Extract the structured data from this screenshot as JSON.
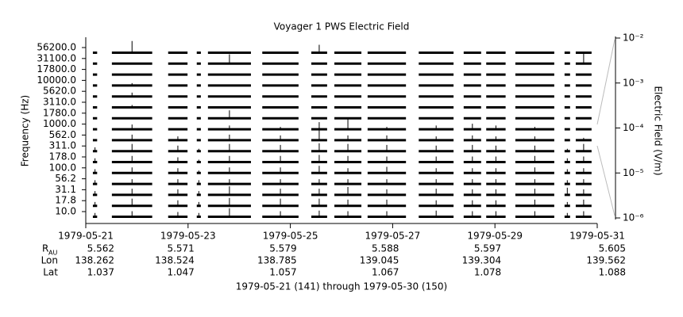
{
  "chart_data": {
    "type": "strip",
    "title": "Voyager 1 PWS Electric Field",
    "ylabel": "Frequency (Hz)",
    "y2label": "Electric Field (V/m)",
    "xlabel": "1979-05-21 (141) through 1979-05-30 (150)",
    "color": "#000000",
    "xlim": [
      "1979-05-21",
      "1979-05-31"
    ],
    "xticks": [
      "1979-05-21",
      "1979-05-23",
      "1979-05-25",
      "1979-05-27",
      "1979-05-29",
      "1979-05-31"
    ],
    "categories": [
      "56200.0",
      "31100.0",
      "17800.0",
      "10000.0",
      "5620.0",
      "3110.0",
      "1780.0",
      "1000.0",
      "562.0",
      "311.0",
      "178.0",
      "100.0",
      "56.2",
      "31.1",
      "17.8",
      "10.0"
    ],
    "segments": [
      [
        "1979-05-21 03:20",
        "1979-05-21 05:20"
      ],
      [
        "1979-05-21 12:15",
        "1979-05-22 07:10"
      ],
      [
        "1979-05-22 14:40",
        "1979-05-22 23:45"
      ],
      [
        "1979-05-23 04:05",
        "1979-05-23 06:00"
      ],
      [
        "1979-05-23 09:20",
        "1979-05-24 05:30"
      ],
      [
        "1979-05-24 10:50",
        "1979-05-25 03:50"
      ],
      [
        "1979-05-25 09:50",
        "1979-05-25 17:15"
      ],
      [
        "1979-05-25 20:40",
        "1979-05-26 09:20"
      ],
      [
        "1979-05-26 12:15",
        "1979-05-27 06:15"
      ],
      [
        "1979-05-27 12:15",
        "1979-05-28 04:35"
      ],
      [
        "1979-05-28 09:20",
        "1979-05-28 17:30"
      ],
      [
        "1979-05-28 19:55",
        "1979-05-29 05:00"
      ],
      [
        "1979-05-29 09:35",
        "1979-05-30 03:50"
      ],
      [
        "1979-05-30 08:40",
        "1979-05-30 11:15"
      ],
      [
        "1979-05-30 13:55",
        "1979-05-30 21:20"
      ]
    ],
    "values": [
      [
        1.2e-06,
        3e-05,
        1.2e-06,
        1.2e-06,
        1.2e-06,
        1.2e-06,
        1e-05,
        1.2e-06,
        1.2e-06,
        1.2e-06,
        1.2e-06,
        1.2e-06,
        1.2e-06,
        1.2e-06,
        1.2e-06
      ],
      [
        1.2e-06,
        1.2e-06,
        1.2e-06,
        1.2e-06,
        1.5e-05,
        1.2e-06,
        1.2e-06,
        1.2e-06,
        1.2e-06,
        1.2e-06,
        1.2e-06,
        1.2e-06,
        1.2e-06,
        1.2e-06,
        2e-05
      ],
      [
        1.2e-06,
        1.2e-06,
        1.2e-06,
        1.2e-06,
        1.2e-06,
        1.2e-06,
        1.2e-06,
        1.2e-06,
        1.2e-06,
        1.2e-06,
        1.2e-06,
        1.2e-06,
        1.2e-06,
        1.2e-06,
        1.2e-06
      ],
      [
        1.2e-06,
        2e-06,
        1.2e-06,
        1.2e-06,
        1.2e-06,
        1.2e-06,
        1.2e-06,
        1.2e-06,
        1.2e-06,
        1.2e-06,
        1.2e-06,
        1.2e-06,
        1.2e-06,
        1.2e-06,
        1.2e-06
      ],
      [
        1.2e-06,
        3e-06,
        1.2e-06,
        1.2e-06,
        1.2e-06,
        1.2e-06,
        1.2e-06,
        1.2e-06,
        1.2e-06,
        1.2e-06,
        1.2e-06,
        1.2e-06,
        1.2e-06,
        1.2e-06,
        1.2e-06
      ],
      [
        1.2e-06,
        2e-06,
        1.2e-06,
        1.2e-06,
        1.2e-06,
        1.2e-06,
        1.2e-06,
        1.2e-06,
        1.2e-06,
        1.2e-06,
        1.2e-06,
        1.2e-06,
        1.2e-06,
        1.2e-06,
        1.2e-06
      ],
      [
        1.2e-06,
        1.2e-06,
        1.2e-06,
        1.2e-06,
        1e-05,
        1.2e-06,
        1.2e-06,
        1.2e-06,
        1.2e-06,
        1.2e-06,
        1.2e-06,
        1.2e-06,
        1.2e-06,
        1.2e-06,
        1.2e-06
      ],
      [
        1.2e-06,
        4e-06,
        1.2e-06,
        1.2e-06,
        3e-06,
        2e-06,
        8e-06,
        3e-05,
        2e-06,
        3e-06,
        5e-06,
        3e-06,
        2e-06,
        1.2e-06,
        1.2e-06
      ],
      [
        1.2e-06,
        5e-06,
        3e-06,
        1.2e-06,
        5e-06,
        4e-06,
        4e-05,
        4e-06,
        4e-06,
        3e-06,
        4e-06,
        3e-06,
        3e-06,
        1.2e-06,
        2e-06
      ],
      [
        3e-06,
        8e-06,
        5e-06,
        2e-06,
        8e-06,
        6e-06,
        1e-05,
        8e-06,
        6e-06,
        5e-06,
        6e-06,
        5e-06,
        5e-06,
        2e-06,
        8e-06
      ],
      [
        3e-06,
        6e-06,
        4e-06,
        2e-06,
        6e-06,
        6e-06,
        8e-06,
        6e-06,
        5e-06,
        5e-06,
        5e-06,
        5e-06,
        6e-06,
        3e-06,
        5e-06
      ],
      [
        3e-06,
        5e-06,
        4e-06,
        2e-06,
        5e-06,
        5e-06,
        8e-06,
        4e-06,
        6e-06,
        4e-06,
        4e-06,
        4e-06,
        5e-06,
        3e-06,
        4e-06
      ],
      [
        3e-06,
        4e-06,
        4e-06,
        3e-06,
        4e-06,
        4e-06,
        4e-06,
        4e-06,
        4e-06,
        4e-06,
        4e-06,
        4e-06,
        4e-06,
        3e-06,
        4e-06
      ],
      [
        3e-06,
        6e-06,
        5e-06,
        3e-06,
        1.2e-05,
        6e-06,
        6e-06,
        1e-05,
        5e-06,
        6e-06,
        5e-06,
        5e-06,
        6e-06,
        8e-06,
        5e-06
      ],
      [
        3e-06,
        8e-06,
        5e-06,
        3e-06,
        1e-05,
        8e-06,
        8e-06,
        6e-06,
        6e-06,
        5e-06,
        5e-06,
        5e-06,
        6e-06,
        3e-06,
        6e-06
      ],
      [
        3e-06,
        5e-06,
        4e-06,
        3e-06,
        1.2e-05,
        5e-06,
        6e-06,
        5e-06,
        5e-06,
        6e-06,
        5e-06,
        5e-06,
        5e-06,
        3e-06,
        5e-06
      ]
    ],
    "y2scale": "log",
    "y2lim": [
      1e-06,
      0.01
    ],
    "y2ticks": [
      {
        "value": 1e-06,
        "label": "10⁻⁶"
      },
      {
        "value": 1e-05,
        "label": "10⁻⁵"
      },
      {
        "value": 0.0001,
        "label": "10⁻⁴"
      },
      {
        "value": 0.001,
        "label": "10⁻³"
      },
      {
        "value": 0.01,
        "label": "10⁻²"
      }
    ],
    "ephemeris": [
      {
        "label": "R",
        "subscript": "AU",
        "values": [
          5.562,
          5.571,
          5.579,
          5.588,
          5.597,
          5.605
        ]
      },
      {
        "label": "Lon",
        "values": [
          138.262,
          138.524,
          138.785,
          139.045,
          139.304,
          139.562
        ]
      },
      {
        "label": "Lat",
        "values": [
          1.037,
          1.047,
          1.057,
          1.067,
          1.078,
          1.088
        ]
      }
    ]
  }
}
